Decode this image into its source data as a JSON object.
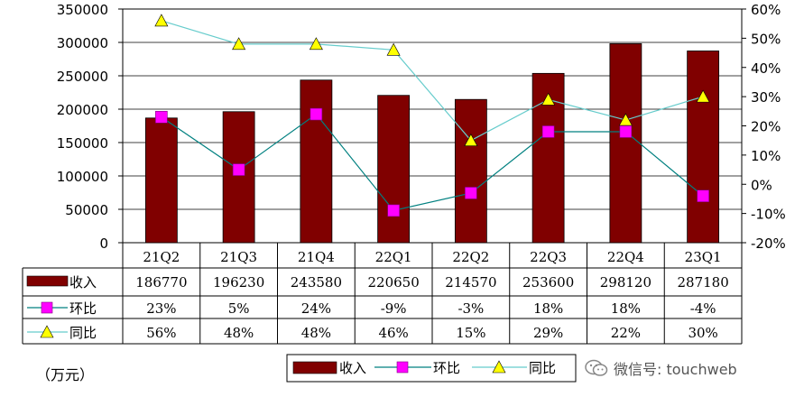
{
  "chart_data": {
    "type": "bar+line",
    "categories": [
      "21Q2",
      "21Q3",
      "21Q4",
      "22Q1",
      "22Q2",
      "22Q3",
      "22Q4",
      "23Q1"
    ],
    "series": [
      {
        "name": "收入",
        "type": "bar",
        "axis": "left",
        "values": [
          186770,
          196230,
          243580,
          220650,
          214570,
          253600,
          298120,
          287180
        ],
        "color": "#800000"
      },
      {
        "name": "环比",
        "type": "line",
        "axis": "right",
        "values": [
          23,
          5,
          24,
          -9,
          -3,
          18,
          18,
          -4
        ],
        "marker": "square",
        "color": "#ff00ff",
        "line_color": "#008080"
      },
      {
        "name": "同比",
        "type": "line",
        "axis": "right",
        "values": [
          56,
          48,
          48,
          46,
          15,
          29,
          22,
          30
        ],
        "marker": "triangle",
        "color": "#ffff00",
        "line_color": "#66cccc"
      }
    ],
    "left_axis": {
      "ylim": [
        0,
        350000
      ],
      "ticks": [
        "0",
        "50000",
        "100000",
        "150000",
        "200000",
        "250000",
        "300000",
        "350000"
      ]
    },
    "right_axis": {
      "ylim": [
        -20,
        60
      ],
      "ticks": [
        "-20%",
        "-10%",
        "0%",
        "10%",
        "20%",
        "30%",
        "40%",
        "50%",
        "60%"
      ]
    },
    "table_rows": [
      {
        "label": "收入",
        "cells": [
          "186770",
          "196230",
          "243580",
          "220650",
          "214570",
          "253600",
          "298120",
          "287180"
        ]
      },
      {
        "label": "环比",
        "cells": [
          "23%",
          "5%",
          "24%",
          "-9%",
          "-3%",
          "18%",
          "18%",
          "-4%"
        ]
      },
      {
        "label": "同比",
        "cells": [
          "56%",
          "48%",
          "48%",
          "46%",
          "15%",
          "29%",
          "22%",
          "30%"
        ]
      }
    ],
    "legend": [
      "收入",
      "环比",
      "同比"
    ],
    "grid": true
  },
  "unit_label": "（万元）",
  "watermark": "微信号: touchweb"
}
